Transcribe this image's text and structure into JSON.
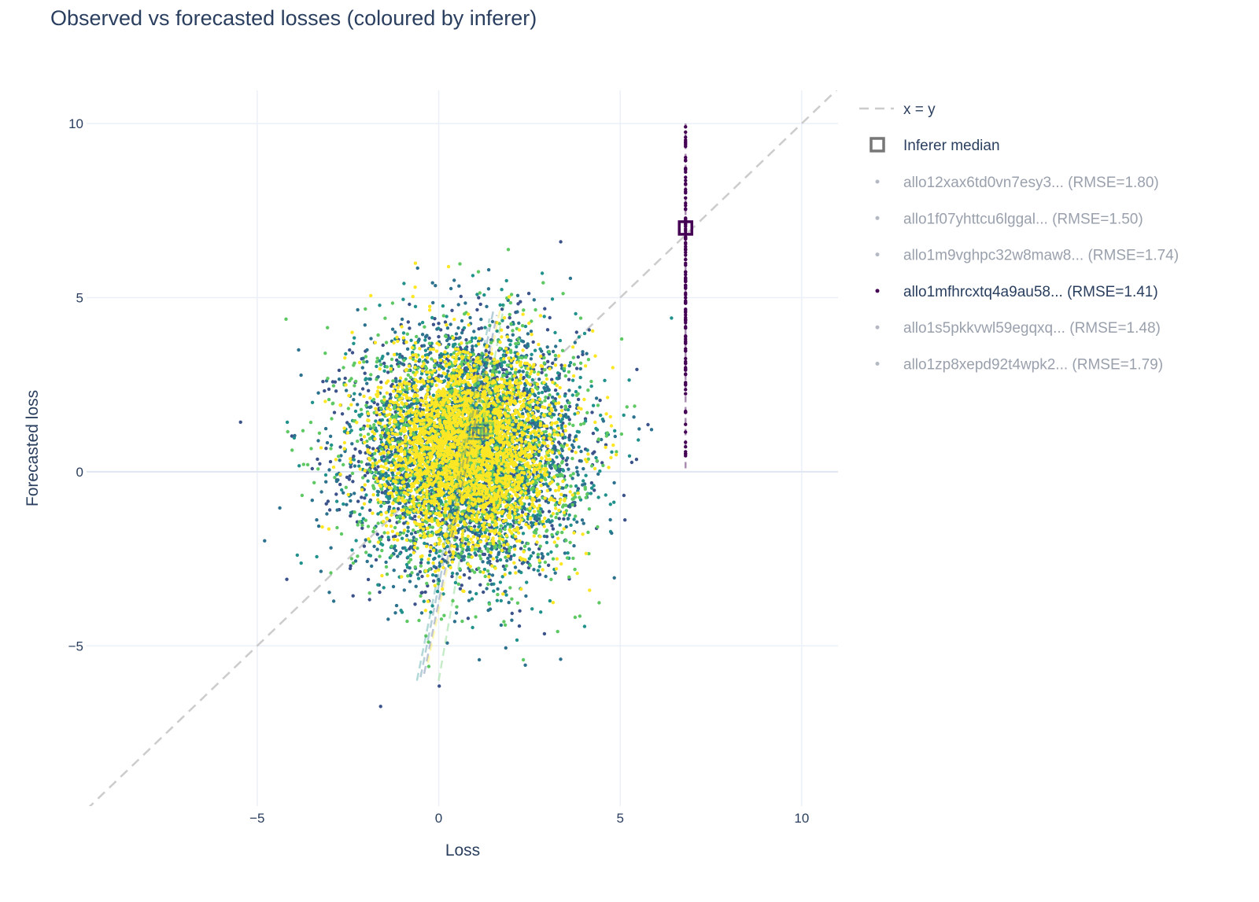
{
  "chart_data": {
    "type": "scatter",
    "title": "Observed vs forecasted losses (coloured by inferer)",
    "xlabel": "Loss",
    "ylabel": "Forecasted loss",
    "xlim": [
      -9.7,
      11.0
    ],
    "ylim": [
      -9.6,
      10.95
    ],
    "x_ticks": [
      -5,
      0,
      5,
      10
    ],
    "y_ticks": [
      -5,
      0,
      5,
      10
    ],
    "x_tick_labels": [
      "−5",
      "0",
      "5",
      "10"
    ],
    "y_tick_labels": [
      "−5",
      "0",
      "5",
      "10"
    ],
    "grid": true,
    "legend_position": "right",
    "reference_line": {
      "name": "x = y",
      "from": [
        -9.7,
        -9.7
      ],
      "to": [
        11.0,
        11.0
      ],
      "color": "#cccccc"
    },
    "median_legend": "Inferer median",
    "series": [
      {
        "name": "allo12xax6td0vn7esy3... (RMSE=1.80)",
        "color": "#2c728e",
        "active": false,
        "median": [
          1.2,
          1.2
        ],
        "fit": [
          [
            -0.5,
            -5.9
          ],
          [
            1.5,
            4.6
          ]
        ]
      },
      {
        "name": "allo1f07yhttcu6lggal... (RMSE=1.50)",
        "color": "#3b528b",
        "active": false,
        "median": [
          1.1,
          1.1
        ],
        "fit": [
          [
            -0.4,
            -5.8
          ],
          [
            1.6,
            4.5
          ]
        ]
      },
      {
        "name": "allo1m9vghpc32w8maw8... (RMSE=1.74)",
        "color": "#5ec962",
        "active": false,
        "median": [
          1.35,
          1.25
        ],
        "fit": [
          [
            0.0,
            -6.0
          ],
          [
            1.8,
            4.8
          ]
        ]
      },
      {
        "name": "allo1mfhrcxtq4a9au58... (RMSE=1.41)",
        "color": "#440154",
        "active": true,
        "median": [
          6.8,
          7.0
        ],
        "x_constant": 6.8,
        "y_range": [
          0.1,
          10.0
        ]
      },
      {
        "name": "allo1s5pkkvwl59egqxq... (RMSE=1.48)",
        "color": "#21918c",
        "active": false,
        "median": [
          1.0,
          1.1
        ],
        "fit": [
          [
            -0.6,
            -6.0
          ],
          [
            1.4,
            4.4
          ]
        ]
      },
      {
        "name": "allo1zp8xepd92t4wpk2... (RMSE=1.79)",
        "color": "#fde725",
        "active": false,
        "median": [
          0.8,
          0.85
        ],
        "fit": [
          [
            -0.3,
            -5.5
          ],
          [
            1.7,
            4.7
          ]
        ]
      }
    ],
    "cloud": {
      "center": [
        0.8,
        0.6
      ],
      "spread": [
        1.55,
        1.75
      ],
      "count_per_series": 1400
    }
  }
}
